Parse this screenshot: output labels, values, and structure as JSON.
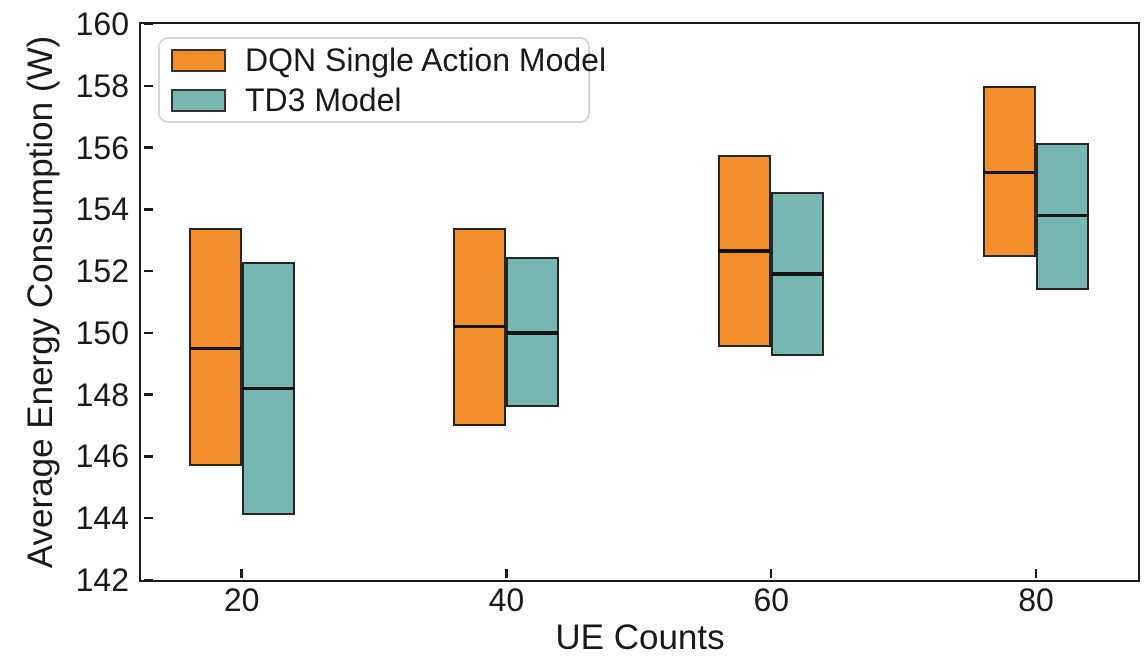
{
  "chart_data": {
    "type": "boxplot",
    "title": "",
    "xlabel": "UE Counts",
    "ylabel": "Average Energy Consumption (W)",
    "categories": [
      20,
      40,
      60,
      80
    ],
    "x_tick_labels": [
      "20",
      "40",
      "60",
      "80"
    ],
    "y_ticks": [
      142,
      144,
      146,
      148,
      150,
      152,
      154,
      156,
      158,
      160
    ],
    "ylim": [
      142,
      160
    ],
    "xlim": [
      12.4,
      87.7
    ],
    "box_width_units": 4,
    "grid": false,
    "legend_position": "upper left",
    "series": [
      {
        "name": "DQN Single Action Model",
        "color": "#F28E2B",
        "side": "left",
        "boxes": [
          {
            "x": 20,
            "q1": 145.7,
            "median": 149.5,
            "q3": 153.4
          },
          {
            "x": 40,
            "q1": 147.0,
            "median": 150.2,
            "q3": 153.4
          },
          {
            "x": 60,
            "q1": 149.55,
            "median": 152.65,
            "q3": 155.75
          },
          {
            "x": 80,
            "q1": 152.45,
            "median": 155.2,
            "q3": 158.0
          }
        ]
      },
      {
        "name": "TD3 Model",
        "color": "#76B7B2",
        "side": "right",
        "boxes": [
          {
            "x": 20,
            "q1": 144.1,
            "median": 148.2,
            "q3": 152.3
          },
          {
            "x": 40,
            "q1": 147.6,
            "median": 150.0,
            "q3": 152.45
          },
          {
            "x": 60,
            "q1": 149.25,
            "median": 151.9,
            "q3": 154.55
          },
          {
            "x": 80,
            "q1": 151.4,
            "median": 153.8,
            "q3": 156.15
          }
        ]
      }
    ],
    "styles": {
      "box_edge_color": "#262626",
      "median_color": "#141414",
      "spine_color": "#1a1a1a",
      "text_color": "#1a1a1a",
      "background": "#ffffff"
    }
  }
}
